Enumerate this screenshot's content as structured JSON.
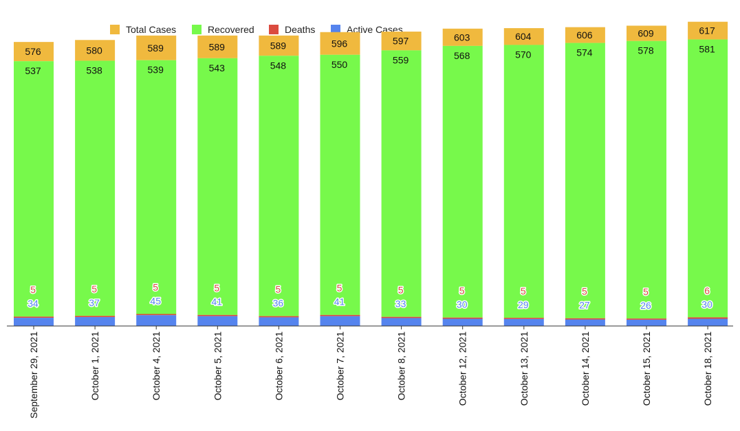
{
  "chart_data": {
    "type": "bar",
    "stacked": true,
    "title": "",
    "xlabel": "",
    "ylabel": "",
    "grid": false,
    "legend_position": "top-left",
    "categories": [
      "September 29, 2021",
      "October 1, 2021",
      "October 4, 2021",
      "October 5, 2021",
      "October 6, 2021",
      "October 7, 2021",
      "October 8, 2021",
      "October 12, 2021",
      "October 13, 2021",
      "October 14, 2021",
      "October 15, 2021",
      "October 18, 2021"
    ],
    "series": [
      {
        "name": "Total Cases",
        "color": "#f0b93e",
        "values": [
          576,
          580,
          589,
          589,
          589,
          596,
          597,
          603,
          604,
          606,
          609,
          617
        ]
      },
      {
        "name": "Recovered",
        "color": "#77f94b",
        "values": [
          537,
          538,
          539,
          543,
          548,
          550,
          559,
          568,
          570,
          574,
          578,
          581
        ]
      },
      {
        "name": "Deaths",
        "color": "#db4b3f",
        "values": [
          5,
          5,
          5,
          5,
          5,
          5,
          5,
          5,
          5,
          5,
          5,
          6
        ]
      },
      {
        "name": "Active Cases",
        "color": "#5584ee",
        "values": [
          34,
          37,
          45,
          41,
          36,
          41,
          33,
          30,
          29,
          27,
          26,
          30
        ]
      }
    ]
  }
}
